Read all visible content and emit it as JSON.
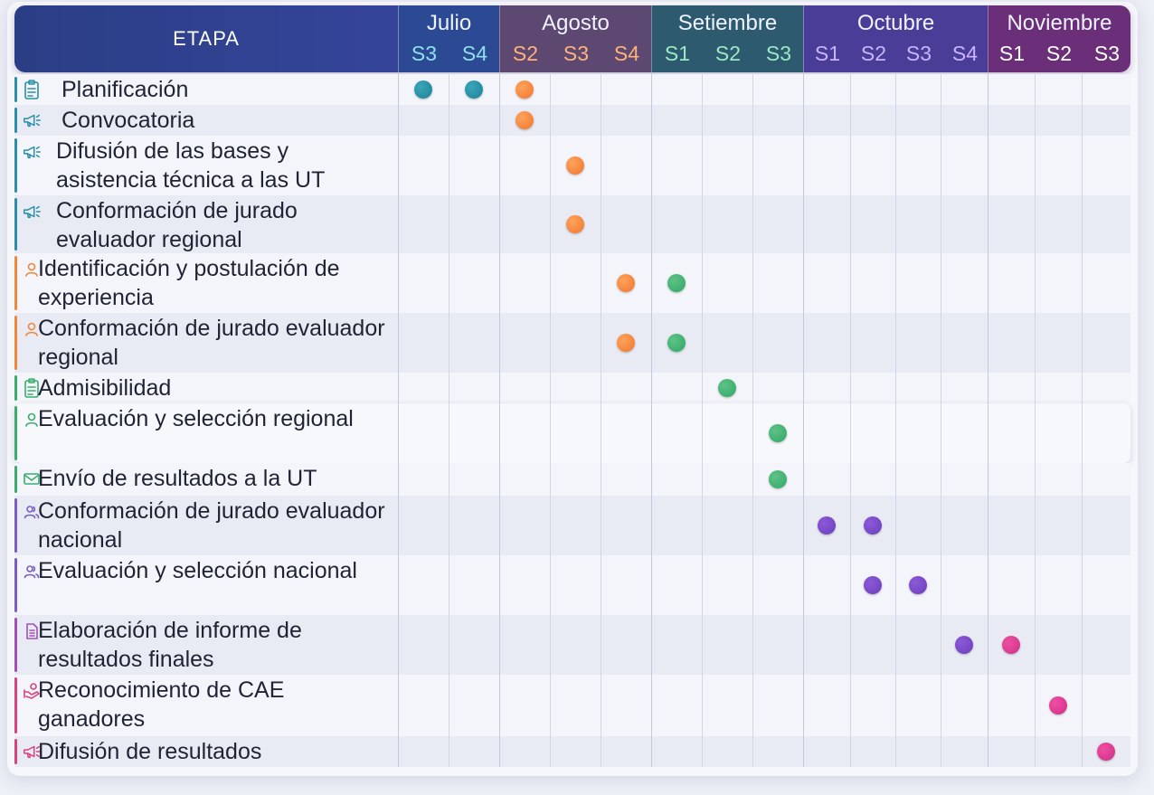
{
  "header": {
    "etapa": "ETAPA",
    "months": [
      {
        "name": "Julio",
        "weeks": [
          "S3",
          "S4"
        ],
        "color": "#2c4a93",
        "week_color": "#8fe0ec"
      },
      {
        "name": "Agosto",
        "weeks": [
          "S2",
          "S3",
          "S4"
        ],
        "color": "#5c4870",
        "week_color": "#ffb27a"
      },
      {
        "name": "Setiembre",
        "weeks": [
          "S1",
          "S2",
          "S3"
        ],
        "color": "#2d5a6e",
        "week_color": "#9be8c4"
      },
      {
        "name": "Octubre",
        "weeks": [
          "S1",
          "S2",
          "S3",
          "S4"
        ],
        "color": "#4a3d98",
        "week_color": "#c8b4ff"
      },
      {
        "name": "Noviembre",
        "weeks": [
          "S1",
          "S2",
          "S3"
        ],
        "color": "#6b2e78",
        "week_color": "#ffffff"
      }
    ]
  },
  "rows": [
    {
      "label": "Planificación",
      "icon": "clipboard-icon",
      "accent": "#2a8ea8",
      "marks": [
        0,
        1,
        2
      ]
    },
    {
      "label": "Convocatoria",
      "icon": "megaphone-icon",
      "accent": "#2a8ea8",
      "marks": [
        2
      ]
    },
    {
      "label": "Difusión de las bases y asistencia técnica a las UT",
      "icon": "megaphone-icon",
      "accent": "#2a8ea8",
      "marks": [
        3
      ]
    },
    {
      "label": "Conformación de jurado evaluador regional",
      "icon": "megaphone-icon",
      "accent": "#2a8ea8",
      "marks": [
        3
      ]
    },
    {
      "label": "Identificación y postulación de experiencia",
      "icon": "user-icon",
      "accent": "#f0873a",
      "marks": [
        4,
        5
      ]
    },
    {
      "label": "Conformación de jurado evaluador regional",
      "icon": "user-icon",
      "accent": "#f0873a",
      "marks": [
        4,
        5
      ]
    },
    {
      "label": "Admisibilidad",
      "icon": "clipboard-icon",
      "accent": "#3aad6c",
      "marks": [
        6
      ]
    },
    {
      "label": "Evaluación y selección regional",
      "icon": "user-icon",
      "accent": "#3aad6c",
      "marks": [
        7
      ]
    },
    {
      "label": "Envío de resultados a la UT",
      "icon": "envelope-icon",
      "accent": "#3aad6c",
      "marks": [
        7
      ]
    },
    {
      "label": "Conformación de jurado evaluador nacional",
      "icon": "users-icon",
      "accent": "#7a5cc4",
      "marks": [
        8,
        9
      ]
    },
    {
      "label": "Evaluación y selección nacional",
      "icon": "users-icon",
      "accent": "#7a5cc4",
      "marks": [
        9,
        10
      ]
    },
    {
      "label": "Elaboración de informe de resultados finales",
      "icon": "document-icon",
      "accent": "#a24fb8",
      "marks": [
        11,
        12
      ]
    },
    {
      "label": "Reconocimiento de CAE ganadores",
      "icon": "award-icon",
      "accent": "#d9437f",
      "marks": [
        13
      ]
    },
    {
      "label": "Difusión de resultados",
      "icon": "megaphone-icon",
      "accent": "#d9437f",
      "marks": [
        14
      ]
    }
  ]
}
